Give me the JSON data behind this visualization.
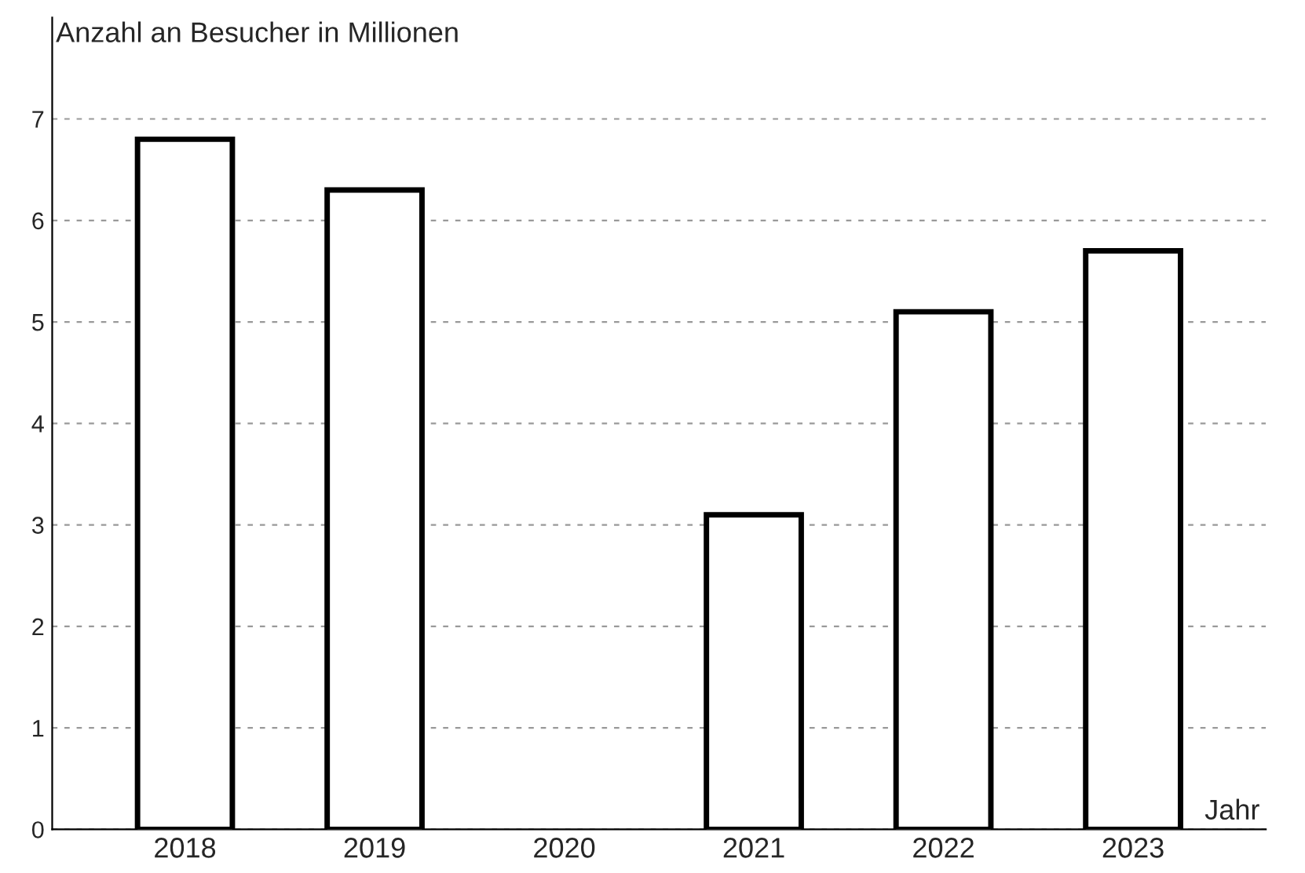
{
  "chart_data": {
    "type": "bar",
    "ylabel": "Anzahl an Besucher in Millionen",
    "xlabel": "Jahr",
    "categories": [
      "2018",
      "2019",
      "2020",
      "2021",
      "2022",
      "2023"
    ],
    "values": [
      6.8,
      6.3,
      null,
      3.1,
      5.1,
      5.7
    ],
    "color": "#ffffff",
    "ylim": [
      0,
      8
    ],
    "yticks": [
      0,
      1,
      2,
      3,
      4,
      5,
      6,
      7
    ],
    "grid": "y"
  }
}
